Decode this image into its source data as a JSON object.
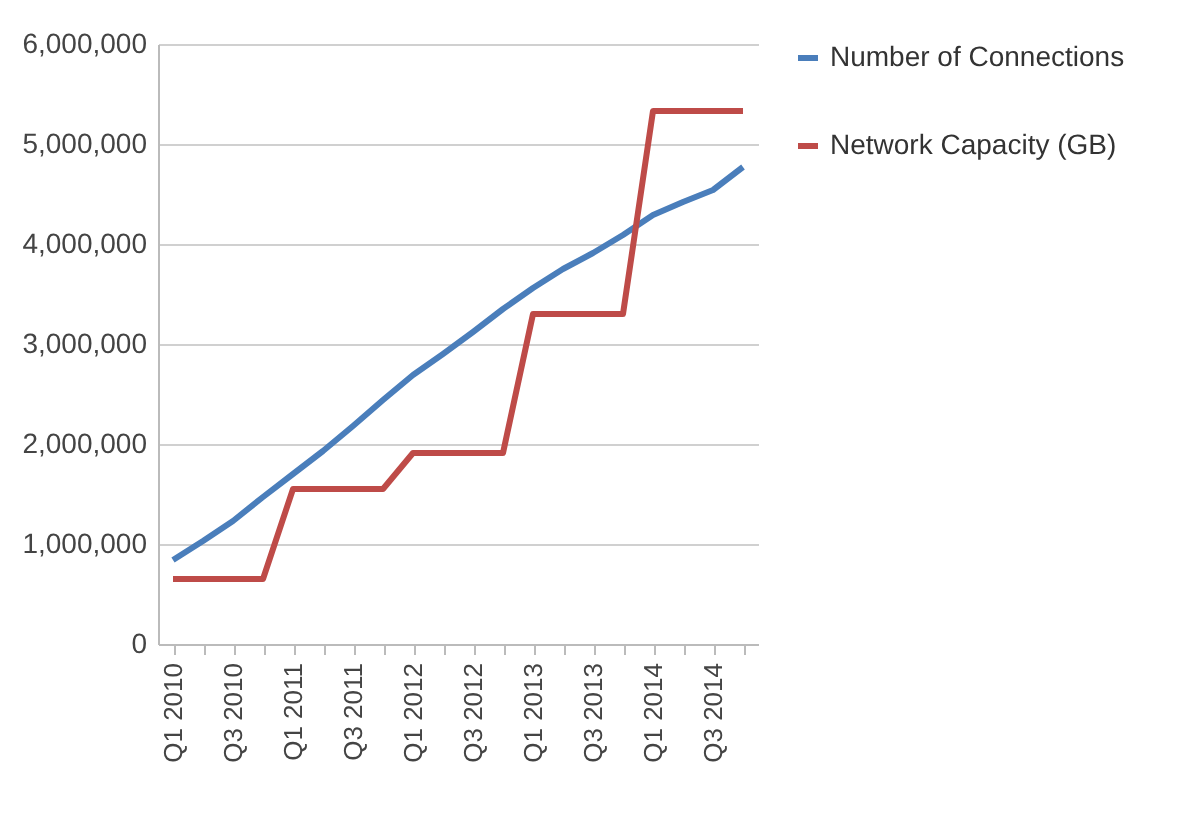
{
  "chart_data": {
    "type": "line",
    "categories": [
      "Q1 2010",
      null,
      "Q3 2010",
      null,
      "Q1 2011",
      null,
      "Q3 2011",
      null,
      "Q1 2012",
      null,
      "Q3 2012",
      null,
      "Q1 2013",
      null,
      "Q3 2013",
      null,
      "Q1 2014",
      null,
      "Q3 2014",
      null
    ],
    "series": [
      {
        "name": "Number of Connections",
        "color": "#4a7ebb",
        "values": [
          840000,
          1030000,
          1230000,
          1470000,
          1700000,
          1930000,
          2180000,
          2440000,
          2690000,
          2900000,
          3120000,
          3350000,
          3560000,
          3750000,
          3910000,
          4090000,
          4290000,
          4420000,
          4540000,
          4770000
        ]
      },
      {
        "name": "Network Capacity (GB)",
        "color": "#be4b48",
        "values": [
          650000,
          650000,
          650000,
          650000,
          1550000,
          1550000,
          1550000,
          1550000,
          1910000,
          1910000,
          1910000,
          1910000,
          3300000,
          3300000,
          3300000,
          3300000,
          5330000,
          5330000,
          5330000,
          5330000
        ]
      }
    ],
    "ylim": [
      0,
      6000000
    ],
    "yticks": [
      0,
      {
        "value": 1000000,
        "label": "1,000,000"
      },
      {
        "value": 2000000,
        "label": "2,000,000"
      },
      {
        "value": 3000000,
        "label": "3,000,000"
      },
      {
        "value": 4000000,
        "label": "4,000,000"
      },
      {
        "value": 5000000,
        "label": "5,000,000"
      },
      {
        "value": 6000000,
        "label": "6,000,000"
      }
    ],
    "grid": "y",
    "legend": "right"
  }
}
